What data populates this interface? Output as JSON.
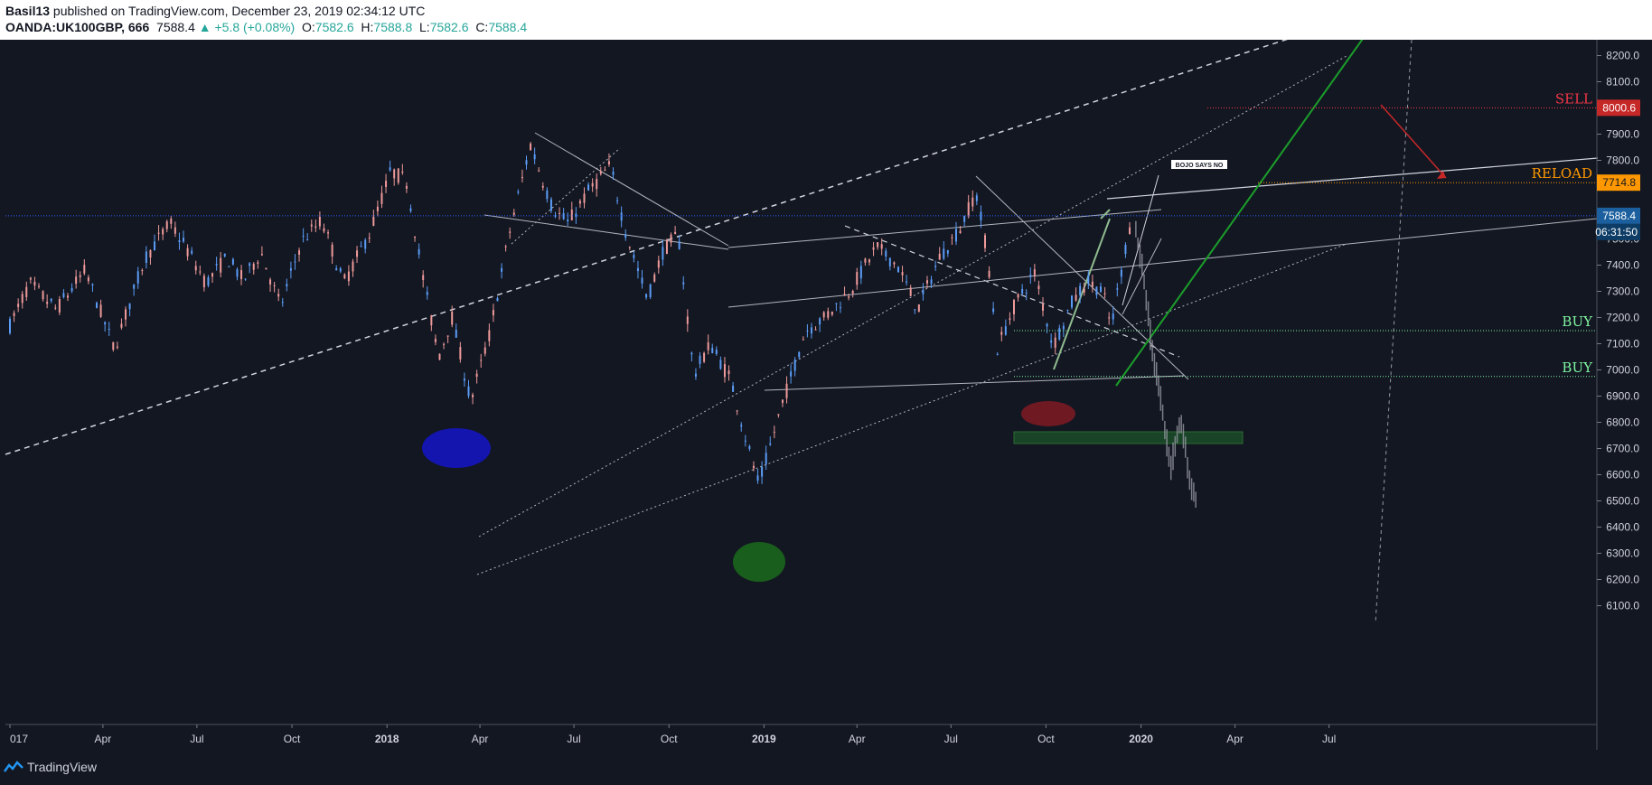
{
  "header": {
    "author": "Basil13",
    "published": " published on TradingView.com, December 23, 2019 02:34:12 UTC",
    "symbol": "OANDA:UK100GBP, 666",
    "last": "7588.4",
    "change": "▲ +5.8 (+0.08%)",
    "o_label": "O:",
    "o_value": "7582.6",
    "h_label": "H:",
    "h_value": "7588.8",
    "l_label": "L:",
    "l_value": "7582.6",
    "c_label": "C:",
    "c_value": "7588.4"
  },
  "footer": {
    "brand": "TradingView",
    "logo_icon": "tradingview-logo-icon"
  },
  "colors": {
    "background": "#131722",
    "bull": "#5b9cf6",
    "bear": "#ef9a9a",
    "sell": "#f23645",
    "reload": "#ff9800",
    "buy": "#7ff7a1",
    "projection": "#9598a1",
    "price_line": "#2962ff"
  },
  "chart_data": {
    "type": "candlestick",
    "symbol": "OANDA:UK100GBP",
    "x_ticks": [
      "017",
      "Apr",
      "Jul",
      "Oct",
      "2018",
      "Apr",
      "Jul",
      "Oct",
      "2019",
      "Apr",
      "Jul",
      "Oct",
      "2020",
      "Apr",
      "Jul"
    ],
    "y_ticks": [
      "8200.0",
      "8100.0",
      "8000.0",
      "7900.0",
      "7800.0",
      "7700.0",
      "7600.0",
      "7500.0",
      "7400.0",
      "7300.0",
      "7200.0",
      "7100.0",
      "7000.0",
      "6900.0",
      "6800.0",
      "6700.0",
      "6600.0",
      "6500.0",
      "6400.0",
      "6300.0",
      "6200.0",
      "6100.0"
    ],
    "ylim": [
      6050,
      8280
    ],
    "price_path": [
      [
        "2017-01-01",
        7170
      ],
      [
        "2017-01-20",
        7330
      ],
      [
        "2017-02-15",
        7230
      ],
      [
        "2017-03-15",
        7380
      ],
      [
        "2017-04-12",
        7080
      ],
      [
        "2017-05-12",
        7430
      ],
      [
        "2017-06-05",
        7560
      ],
      [
        "2017-06-20",
        7470
      ],
      [
        "2017-07-10",
        7330
      ],
      [
        "2017-07-30",
        7430
      ],
      [
        "2017-08-15",
        7340
      ],
      [
        "2017-09-01",
        7450
      ],
      [
        "2017-09-20",
        7240
      ],
      [
        "2017-10-10",
        7490
      ],
      [
        "2017-10-30",
        7570
      ],
      [
        "2017-11-20",
        7330
      ],
      [
        "2017-12-15",
        7520
      ],
      [
        "2018-01-05",
        7760
      ],
      [
        "2018-01-20",
        7720
      ],
      [
        "2018-02-05",
        7350
      ],
      [
        "2018-02-20",
        7050
      ],
      [
        "2018-03-05",
        7200
      ],
      [
        "2018-03-23",
        6880
      ],
      [
        "2018-04-10",
        7130
      ],
      [
        "2018-05-01",
        7550
      ],
      [
        "2018-05-20",
        7860
      ],
      [
        "2018-06-10",
        7620
      ],
      [
        "2018-06-25",
        7560
      ],
      [
        "2018-07-15",
        7680
      ],
      [
        "2018-08-05",
        7780
      ],
      [
        "2018-08-20",
        7530
      ],
      [
        "2018-09-10",
        7270
      ],
      [
        "2018-09-25",
        7450
      ],
      [
        "2018-10-10",
        7520
      ],
      [
        "2018-10-25",
        6980
      ],
      [
        "2018-11-10",
        7100
      ],
      [
        "2018-11-30",
        6960
      ],
      [
        "2018-12-15",
        6730
      ],
      [
        "2018-12-27",
        6560
      ],
      [
        "2019-01-15",
        6820
      ],
      [
        "2019-02-10",
        7150
      ],
      [
        "2019-03-01",
        7200
      ],
      [
        "2019-03-25",
        7300
      ],
      [
        "2019-04-20",
        7470
      ],
      [
        "2019-05-10",
        7400
      ],
      [
        "2019-05-30",
        7230
      ],
      [
        "2019-06-20",
        7430
      ],
      [
        "2019-07-10",
        7540
      ],
      [
        "2019-07-25",
        7680
      ],
      [
        "2019-08-05",
        7450
      ],
      [
        "2019-08-15",
        7080
      ],
      [
        "2019-09-01",
        7250
      ],
      [
        "2019-09-20",
        7370
      ],
      [
        "2019-10-08",
        7090
      ],
      [
        "2019-10-25",
        7250
      ],
      [
        "2019-11-10",
        7340
      ],
      [
        "2019-11-25",
        7300
      ],
      [
        "2019-12-03",
        7160
      ],
      [
        "2019-12-13",
        7380
      ],
      [
        "2019-12-23",
        7588.4
      ]
    ],
    "price_line": {
      "value": 7588.4,
      "label": "7588.4",
      "countdown": "06:31:50"
    },
    "levels": [
      {
        "name": "SELL",
        "value": 8000.6,
        "label": "8000.6"
      },
      {
        "name": "RELOAD",
        "value": 7714.8,
        "label": "7714.8"
      },
      {
        "name": "BUY",
        "value": 7150
      },
      {
        "name": "BUY",
        "value": 6975
      }
    ],
    "annotations": [
      {
        "text": "BOJO SAYS NO"
      }
    ],
    "projection_path": [
      [
        "2019-12-27",
        7530
      ],
      [
        "2020-01-05",
        7320
      ],
      [
        "2020-01-12",
        7060
      ],
      [
        "2020-01-20",
        6880
      ],
      [
        "2020-01-30",
        6620
      ],
      [
        "2020-02-08",
        6820
      ],
      [
        "2020-02-18",
        6560
      ],
      [
        "2020-02-24",
        6500
      ]
    ]
  }
}
